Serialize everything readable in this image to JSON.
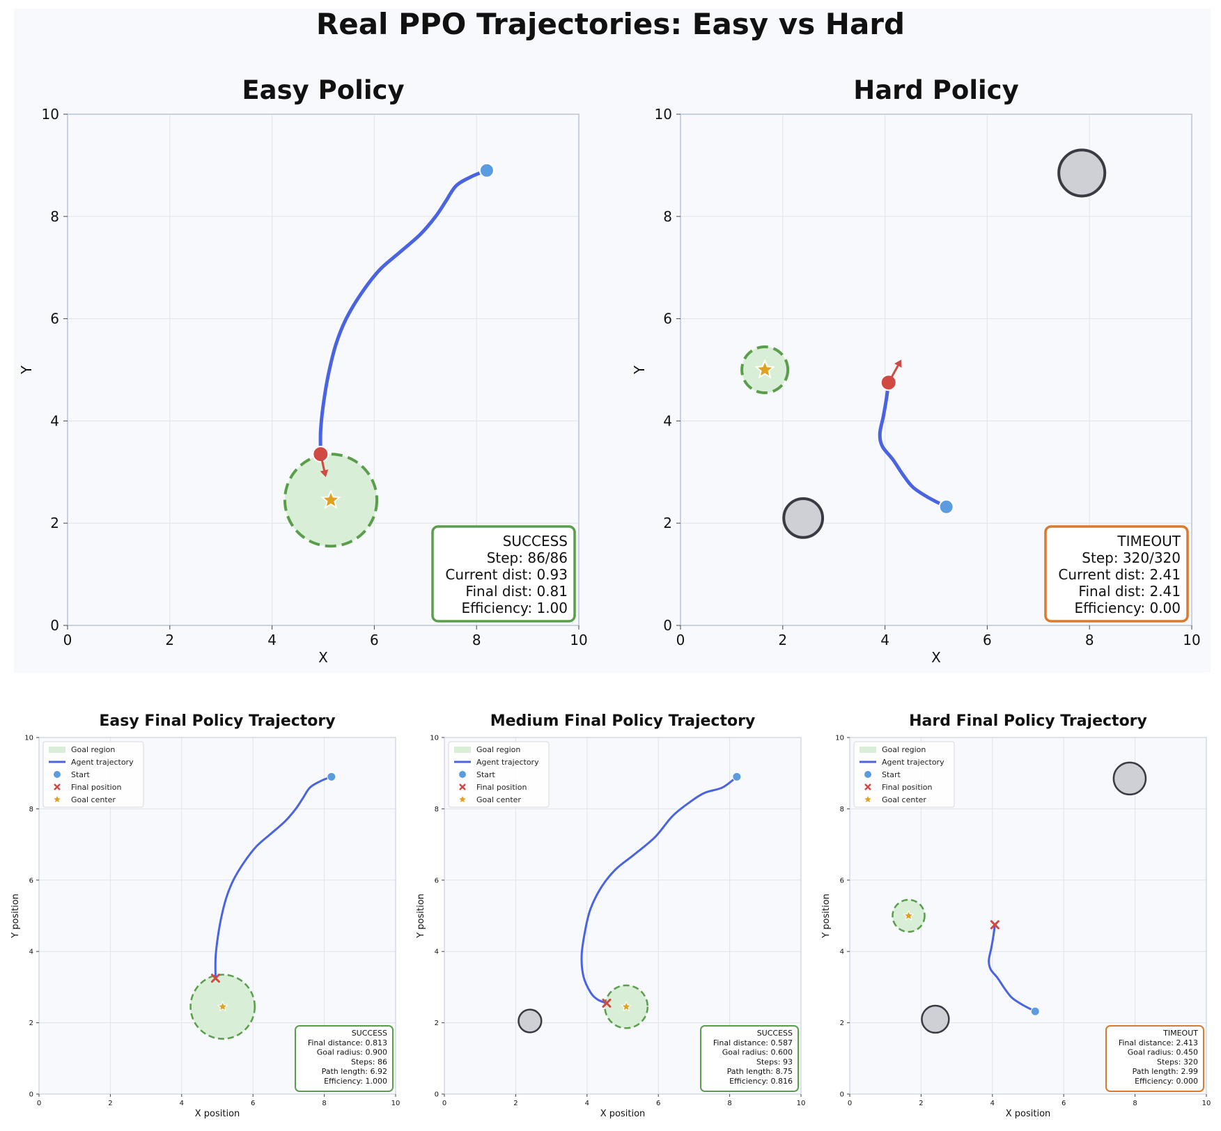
{
  "title": "Real PPO Trajectories: Easy vs Hard",
  "colors": {
    "trajectory": "#4a63e0",
    "start": "#5b9be0",
    "final": "#d04a43",
    "goal_fill": "#d9eed6",
    "goal_edge": "#5a9e4b",
    "goal_star": "#e0a020",
    "obstacle_fill": "#cfd0d6",
    "obstacle_edge": "#3a3a44",
    "success_border": "#5a9e4b",
    "timeout_border": "#d97a2e",
    "panel_bg": "#f7f9fc",
    "grid": "#dfe3ea",
    "axis_frame": "#c9d0e0"
  },
  "chart_data": [
    {
      "id": "easy-large",
      "type": "scatter",
      "title": "Easy Policy",
      "xlabel": "X",
      "ylabel": "Y",
      "xlim": [
        0,
        10
      ],
      "ylim": [
        0,
        10
      ],
      "xticks": [
        "0",
        "2",
        "4",
        "6",
        "8",
        "10"
      ],
      "yticks": [
        "0",
        "2",
        "4",
        "6",
        "8",
        "10"
      ],
      "grid": true,
      "goal": {
        "center": [
          5.15,
          2.45
        ],
        "radius": 0.9
      },
      "obstacles": [],
      "start": [
        8.2,
        8.9
      ],
      "final": [
        4.95,
        3.35
      ],
      "heading": [
        0.1,
        -0.45
      ],
      "trajectory": [
        [
          8.2,
          8.9
        ],
        [
          7.9,
          8.78
        ],
        [
          7.6,
          8.6
        ],
        [
          7.4,
          8.3
        ],
        [
          7.2,
          8.0
        ],
        [
          6.9,
          7.65
        ],
        [
          6.5,
          7.3
        ],
        [
          6.1,
          6.95
        ],
        [
          5.75,
          6.5
        ],
        [
          5.45,
          6.0
        ],
        [
          5.25,
          5.5
        ],
        [
          5.1,
          4.9
        ],
        [
          5.0,
          4.3
        ],
        [
          4.95,
          3.8
        ],
        [
          4.95,
          3.35
        ]
      ],
      "info": {
        "status": "SUCCESS",
        "lines": [
          "SUCCESS",
          "Step: 86/86",
          "Current dist: 0.93",
          "Final dist: 0.81",
          "Efficiency: 1.00"
        ]
      }
    },
    {
      "id": "hard-large",
      "type": "scatter",
      "title": "Hard Policy",
      "xlabel": "X",
      "ylabel": "Y",
      "xlim": [
        0,
        10
      ],
      "ylim": [
        0,
        10
      ],
      "xticks": [
        "0",
        "2",
        "4",
        "6",
        "8",
        "10"
      ],
      "yticks": [
        "0",
        "2",
        "4",
        "6",
        "8",
        "10"
      ],
      "grid": true,
      "goal": {
        "center": [
          1.65,
          5.0
        ],
        "radius": 0.45
      },
      "obstacles": [
        {
          "center": [
            2.4,
            2.1
          ],
          "radius": 0.38
        },
        {
          "center": [
            7.85,
            8.85
          ],
          "radius": 0.45
        }
      ],
      "start": [
        5.2,
        2.32
      ],
      "final": [
        4.07,
        4.75
      ],
      "heading": [
        0.25,
        0.45
      ],
      "trajectory": [
        [
          5.2,
          2.32
        ],
        [
          4.85,
          2.5
        ],
        [
          4.55,
          2.7
        ],
        [
          4.35,
          2.95
        ],
        [
          4.15,
          3.25
        ],
        [
          3.95,
          3.5
        ],
        [
          3.9,
          3.75
        ],
        [
          3.97,
          4.1
        ],
        [
          4.03,
          4.45
        ],
        [
          4.07,
          4.75
        ]
      ],
      "info": {
        "status": "TIMEOUT",
        "lines": [
          "TIMEOUT",
          "Step: 320/320",
          "Current dist: 2.41",
          "Final dist: 2.41",
          "Efficiency: 0.00"
        ]
      }
    },
    {
      "id": "easy-small",
      "type": "scatter",
      "title": "Easy Final Policy Trajectory",
      "xlabel": "X position",
      "ylabel": "Y position",
      "xlim": [
        0,
        10
      ],
      "ylim": [
        0,
        10
      ],
      "xticks": [
        "0",
        "2",
        "4",
        "6",
        "8",
        "10"
      ],
      "yticks": [
        "0",
        "2",
        "4",
        "6",
        "8",
        "10"
      ],
      "grid": true,
      "legend": [
        "Goal region",
        "Agent trajectory",
        "Start",
        "Final position",
        "Goal center"
      ],
      "goal": {
        "center": [
          5.15,
          2.45
        ],
        "radius": 0.9
      },
      "obstacles": [],
      "start": [
        8.2,
        8.9
      ],
      "final": [
        4.95,
        3.25
      ],
      "trajectory": [
        [
          8.2,
          8.9
        ],
        [
          7.9,
          8.78
        ],
        [
          7.6,
          8.6
        ],
        [
          7.4,
          8.3
        ],
        [
          7.2,
          8.0
        ],
        [
          6.9,
          7.65
        ],
        [
          6.5,
          7.3
        ],
        [
          6.1,
          6.95
        ],
        [
          5.75,
          6.5
        ],
        [
          5.45,
          6.0
        ],
        [
          5.25,
          5.5
        ],
        [
          5.1,
          4.9
        ],
        [
          5.0,
          4.3
        ],
        [
          4.95,
          3.8
        ],
        [
          4.95,
          3.25
        ]
      ],
      "info": {
        "status": "SUCCESS",
        "lines": [
          "SUCCESS",
          "Final distance: 0.813",
          "Goal radius: 0.900",
          "Steps: 86",
          "Path length: 6.92",
          "Efficiency: 1.000"
        ]
      }
    },
    {
      "id": "medium-small",
      "type": "scatter",
      "title": "Medium Final Policy Trajectory",
      "xlabel": "X position",
      "ylabel": "Y position",
      "xlim": [
        0,
        10
      ],
      "ylim": [
        0,
        10
      ],
      "xticks": [
        "0",
        "2",
        "4",
        "6",
        "8",
        "10"
      ],
      "yticks": [
        "0",
        "2",
        "4",
        "6",
        "8",
        "10"
      ],
      "grid": true,
      "legend": [
        "Goal region",
        "Agent trajectory",
        "Start",
        "Final position",
        "Goal center"
      ],
      "goal": {
        "center": [
          5.1,
          2.45
        ],
        "radius": 0.6
      },
      "obstacles": [
        {
          "center": [
            2.4,
            2.05
          ],
          "radius": 0.32
        }
      ],
      "start": [
        8.2,
        8.9
      ],
      "final": [
        4.55,
        2.55
      ],
      "trajectory": [
        [
          8.2,
          8.9
        ],
        [
          7.8,
          8.6
        ],
        [
          7.3,
          8.45
        ],
        [
          6.9,
          8.2
        ],
        [
          6.4,
          7.8
        ],
        [
          5.9,
          7.2
        ],
        [
          5.3,
          6.7
        ],
        [
          4.8,
          6.3
        ],
        [
          4.4,
          5.8
        ],
        [
          4.1,
          5.2
        ],
        [
          3.95,
          4.6
        ],
        [
          3.85,
          3.9
        ],
        [
          3.9,
          3.3
        ],
        [
          4.1,
          2.85
        ],
        [
          4.3,
          2.65
        ],
        [
          4.55,
          2.55
        ]
      ],
      "info": {
        "status": "SUCCESS",
        "lines": [
          "SUCCESS",
          "Final distance: 0.587",
          "Goal radius: 0.600",
          "Steps: 93",
          "Path length: 8.75",
          "Efficiency: 0.816"
        ]
      }
    },
    {
      "id": "hard-small",
      "type": "scatter",
      "title": "Hard Final Policy Trajectory",
      "xlabel": "X position",
      "ylabel": "Y position",
      "xlim": [
        0,
        10
      ],
      "ylim": [
        0,
        10
      ],
      "xticks": [
        "0",
        "2",
        "4",
        "6",
        "8",
        "10"
      ],
      "yticks": [
        "0",
        "2",
        "4",
        "6",
        "8",
        "10"
      ],
      "grid": true,
      "legend": [
        "Goal region",
        "Agent trajectory",
        "Start",
        "Final position",
        "Goal center"
      ],
      "goal": {
        "center": [
          1.65,
          5.0
        ],
        "radius": 0.45
      },
      "obstacles": [
        {
          "center": [
            2.4,
            2.1
          ],
          "radius": 0.38
        },
        {
          "center": [
            7.85,
            8.85
          ],
          "radius": 0.45
        }
      ],
      "start": [
        5.2,
        2.32
      ],
      "final": [
        4.07,
        4.75
      ],
      "trajectory": [
        [
          5.2,
          2.32
        ],
        [
          4.85,
          2.5
        ],
        [
          4.55,
          2.7
        ],
        [
          4.35,
          2.95
        ],
        [
          4.15,
          3.25
        ],
        [
          3.95,
          3.5
        ],
        [
          3.9,
          3.75
        ],
        [
          3.97,
          4.1
        ],
        [
          4.03,
          4.45
        ],
        [
          4.07,
          4.75
        ]
      ],
      "info": {
        "status": "TIMEOUT",
        "lines": [
          "TIMEOUT",
          "Final distance: 2.413",
          "Goal radius: 0.450",
          "Steps: 320",
          "Path length: 2.99",
          "Efficiency: 0.000"
        ]
      }
    }
  ]
}
